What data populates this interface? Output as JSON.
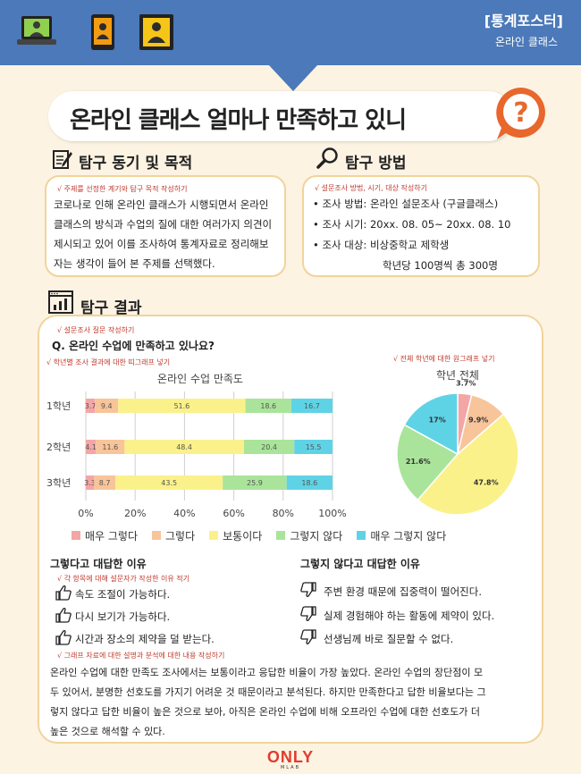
{
  "header": {
    "poster_type": "[통계포스터]",
    "subject": "온라인 클래스",
    "icons": [
      "laptop-icon",
      "tablet-icon",
      "monitor-icon"
    ]
  },
  "title": "온라인 클래스 얼마나 만족하고 있니",
  "motivation": {
    "heading": "탐구 동기 및 목적",
    "note": "√ 주제를 선정한 계기와 탐구 목적 작성하기",
    "lines": [
      "코로나로 인해 온라인 클래스가 시행되면서 온라인",
      "클래스의 방식과 수업의 질에 대한 여러가지 의견이",
      "제시되고 있어 이를 조사하여 통계자료로 정리해보",
      "자는 생각이 들어 본 주제를 선택했다."
    ]
  },
  "method": {
    "heading": "탐구 방법",
    "note": "√ 설문조사 방법, 시기, 대상 작성하기",
    "items": [
      "• 조사 방법: 온라인 설문조사 (구글클래스)",
      "• 조사 시기: 20xx. 08. 05~ 20xx. 08. 10",
      "• 조사 대상: 비상중학교 제학생",
      "학년당 100명씩 총 300명"
    ]
  },
  "results": {
    "heading": "탐구 결과",
    "note_question": "√ 설문조사 질문 작성하기",
    "question": "Q. 온라인 수업에 만족하고 있나요?",
    "note_bar": "√ 학년별 조사 결과에 대한 띠그래프 넣기",
    "note_pie": "√ 전체 학년에 대한 원그래프 넣기"
  },
  "chart_data": [
    {
      "type": "bar",
      "orientation": "horizontal",
      "stacked": true,
      "title": "온라인 수업 만족도",
      "categories": [
        "1학년",
        "2학년",
        "3학년"
      ],
      "series": [
        {
          "name": "매우 그렇다",
          "color": "#f4a6a6",
          "values": [
            3.7,
            4.1,
            3.3
          ]
        },
        {
          "name": "그렇다",
          "color": "#f8c49a",
          "values": [
            9.4,
            11.6,
            8.7
          ]
        },
        {
          "name": "보통이다",
          "color": "#fbf18a",
          "values": [
            51.6,
            48.4,
            43.5
          ]
        },
        {
          "name": "그렇지 않다",
          "color": "#a9e49a",
          "values": [
            18.6,
            20.4,
            25.9
          ]
        },
        {
          "name": "매우 그렇지 않다",
          "color": "#5fd3e6",
          "values": [
            16.7,
            15.5,
            18.6
          ]
        }
      ],
      "xlim": [
        0,
        100
      ],
      "ticks": [
        "0%",
        "20%",
        "40%",
        "60%",
        "80%",
        "100%"
      ],
      "grid": true,
      "legend": "bottom"
    },
    {
      "type": "pie",
      "title": "학년 전체",
      "labels": [
        "매우 그렇다",
        "그렇다",
        "보통이다",
        "그렇지 않다",
        "매우 그렇지 않다"
      ],
      "values": [
        3.7,
        9.9,
        47.8,
        21.6,
        17
      ],
      "value_labels": [
        "3.7%",
        "9.9%",
        "47.8%",
        "21.6%",
        "17%"
      ],
      "colors": [
        "#f4a6a6",
        "#f8c49a",
        "#fbf18a",
        "#a9e49a",
        "#5fd3e6"
      ]
    }
  ],
  "reasons_yes": {
    "heading": "그렇다고 대답한 이유",
    "note": "√ 각 항목에 대해 설문자가 작성한 이유 적기",
    "items": [
      "속도 조절이 가능하다.",
      "다시 보기가 가능하다.",
      "시간과 장소의 제약을 덜 받는다."
    ]
  },
  "reasons_no": {
    "heading": "그렇지 않다고 대답한 이유",
    "items": [
      "주변 환경 때문에 집중력이 떨어진다.",
      "실제 경험해야 하는 활동에 제약이 있다.",
      "선생님께 바로 질문할 수 없다."
    ]
  },
  "analysis": {
    "note": "√ 그래프 자료에 대한 설명과 분석에 대한 내용 작성하기",
    "lines": [
      "온라인 수업에 대한 만족도 조사에서는 보통이라고 응답한 비율이 가장 높았다. 온라인 수업의 장단점이 모",
      "두 있어서, 분명한 선호도를 가지기 어려운 것 때문이라고 분석된다. 하지만 만족한다고 답한 비율보다는 그",
      "렇지 않다고 답한 비율이 높은 것으로 보아, 아직은 온라인 수업에 비해 오프라인 수업에 대한 선호도가 더",
      "높은 것으로 해석할 수 있다."
    ]
  },
  "footer": {
    "logo": "ONLY",
    "logo_sub": "MLAB"
  }
}
